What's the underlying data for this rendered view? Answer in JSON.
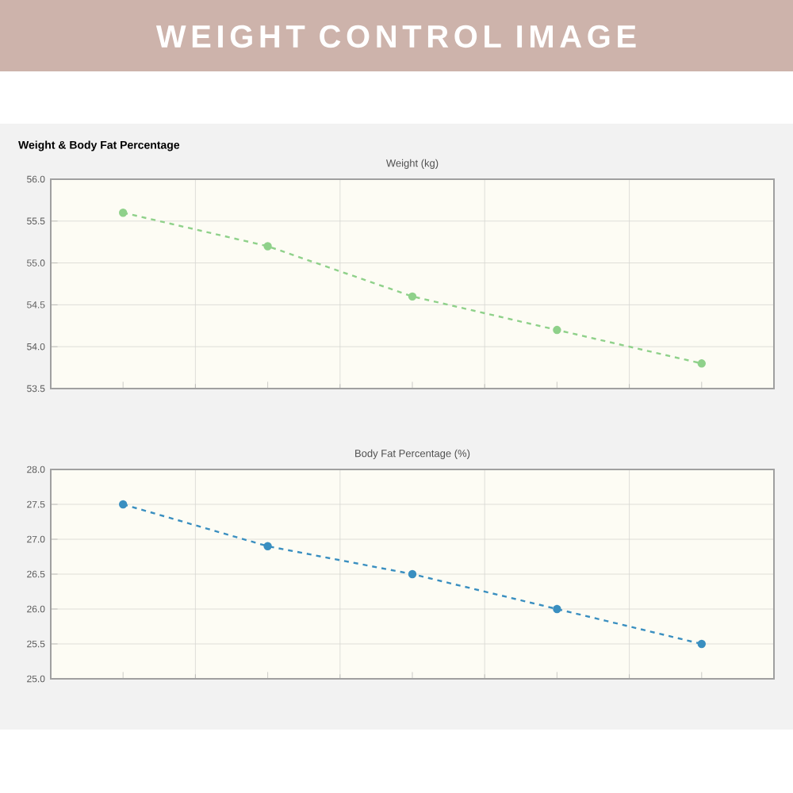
{
  "chart_data": [
    {
      "type": "line",
      "annotations": [
        "WEIGHT CONTROL IMAGE",
        "Weight & Body Fat Percentage"
      ],
      "title": "Weight (kg)",
      "categories": [
        null,
        null,
        null,
        null,
        null
      ],
      "series": [
        {
          "color": "#8fd18a",
          "values": [
            55.6,
            55.2,
            54.6,
            54.2,
            53.8
          ]
        }
      ],
      "ylim": [
        53.5,
        56.0
      ],
      "yticks": [
        {
          "value": 53.5,
          "label": "53.5"
        },
        {
          "value": 54.0,
          "label": "54.0"
        },
        {
          "value": 54.5,
          "label": "54.5"
        },
        {
          "value": 55.0,
          "label": "55.0"
        },
        {
          "value": 55.5,
          "label": "55.5"
        },
        {
          "value": 56.0,
          "label": "56.0"
        }
      ],
      "grid": true,
      "marker": "circle",
      "line_style": "dashed"
    },
    {
      "type": "line",
      "title": "Body Fat Percentage (%)",
      "categories": [
        null,
        null,
        null,
        null,
        null
      ],
      "series": [
        {
          "color": "#3a8fc0",
          "values": [
            27.5,
            26.9,
            26.5,
            26.0,
            25.5
          ]
        }
      ],
      "ylim": [
        25.0,
        28.0
      ],
      "yticks": [
        {
          "value": 25.0,
          "label": "25.0"
        },
        {
          "value": 25.5,
          "label": "25.5"
        },
        {
          "value": 26.0,
          "label": "26.0"
        },
        {
          "value": 26.5,
          "label": "26.5"
        },
        {
          "value": 27.0,
          "label": "27.0"
        },
        {
          "value": 27.5,
          "label": "27.5"
        },
        {
          "value": 28.0,
          "label": "28.0"
        }
      ],
      "grid": true,
      "marker": "circle",
      "line_style": "dashed"
    }
  ]
}
